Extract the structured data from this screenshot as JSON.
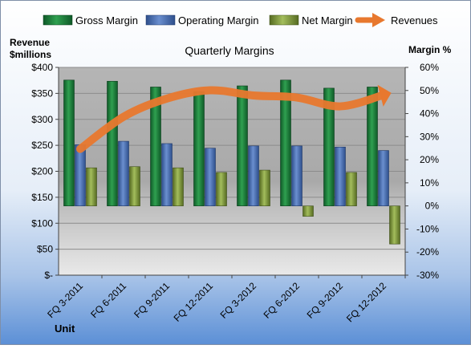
{
  "chart_data": {
    "type": "bar",
    "title": "Quarterly Margins",
    "xlabel": "Unit",
    "ylabel_left_line1": "Revenue",
    "ylabel_left_line2": "$millions",
    "ylabel_right": "Margin %",
    "categories": [
      "FQ 3-2011",
      "FQ 6-2011",
      "FQ 9-2011",
      "FQ 12-2011",
      "FQ 3-2012",
      "FQ 6-2012",
      "FQ 9-2012",
      "FQ 12-2012"
    ],
    "series": [
      {
        "name": "Gross Margin",
        "axis": "right",
        "type": "bar",
        "color": "#1e7a3c",
        "values": [
          54.5,
          54.0,
          51.5,
          49.5,
          52.0,
          54.5,
          51.0,
          51.5
        ]
      },
      {
        "name": "Operating Margin",
        "axis": "right",
        "type": "bar",
        "color": "#4a6fb0",
        "values": [
          26.5,
          28.0,
          27.0,
          25.0,
          26.0,
          26.0,
          25.5,
          24.0
        ]
      },
      {
        "name": "Net Margin",
        "axis": "right",
        "type": "bar",
        "color": "#7f9a3e",
        "values": [
          16.5,
          17.0,
          16.5,
          14.5,
          15.5,
          -4.5,
          14.5,
          -16.5
        ]
      },
      {
        "name": "Revenues",
        "axis": "left",
        "type": "line",
        "color": "#e8782e",
        "values": [
          243,
          305,
          340,
          356,
          346,
          342,
          325,
          347
        ]
      }
    ],
    "ylim_left": [
      0,
      400
    ],
    "ylim_right": [
      -30,
      60
    ],
    "left_ticks": [
      "$-",
      "$50",
      "$100",
      "$150",
      "$200",
      "$250",
      "$300",
      "$350",
      "$400"
    ],
    "right_ticks": [
      "-30%",
      "-20%",
      "-10%",
      "0%",
      "10%",
      "20%",
      "30%",
      "40%",
      "50%",
      "60%"
    ],
    "grid": true,
    "legend_position": "top"
  }
}
